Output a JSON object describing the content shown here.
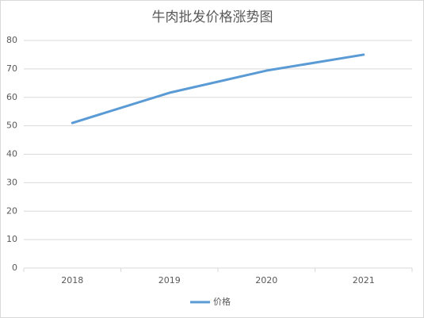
{
  "chart_data": {
    "type": "line",
    "title": "牛肉批发价格涨势图",
    "categories": [
      "2018",
      "2019",
      "2020",
      "2021"
    ],
    "series": [
      {
        "name": "价格",
        "color": "#5b9bd5",
        "values": [
          51,
          61.6,
          69.4,
          75
        ]
      }
    ],
    "ylim": [
      0,
      80
    ],
    "yticks": [
      0,
      10,
      20,
      30,
      40,
      50,
      60,
      70,
      80
    ],
    "grid": true,
    "legend": "bottom"
  }
}
